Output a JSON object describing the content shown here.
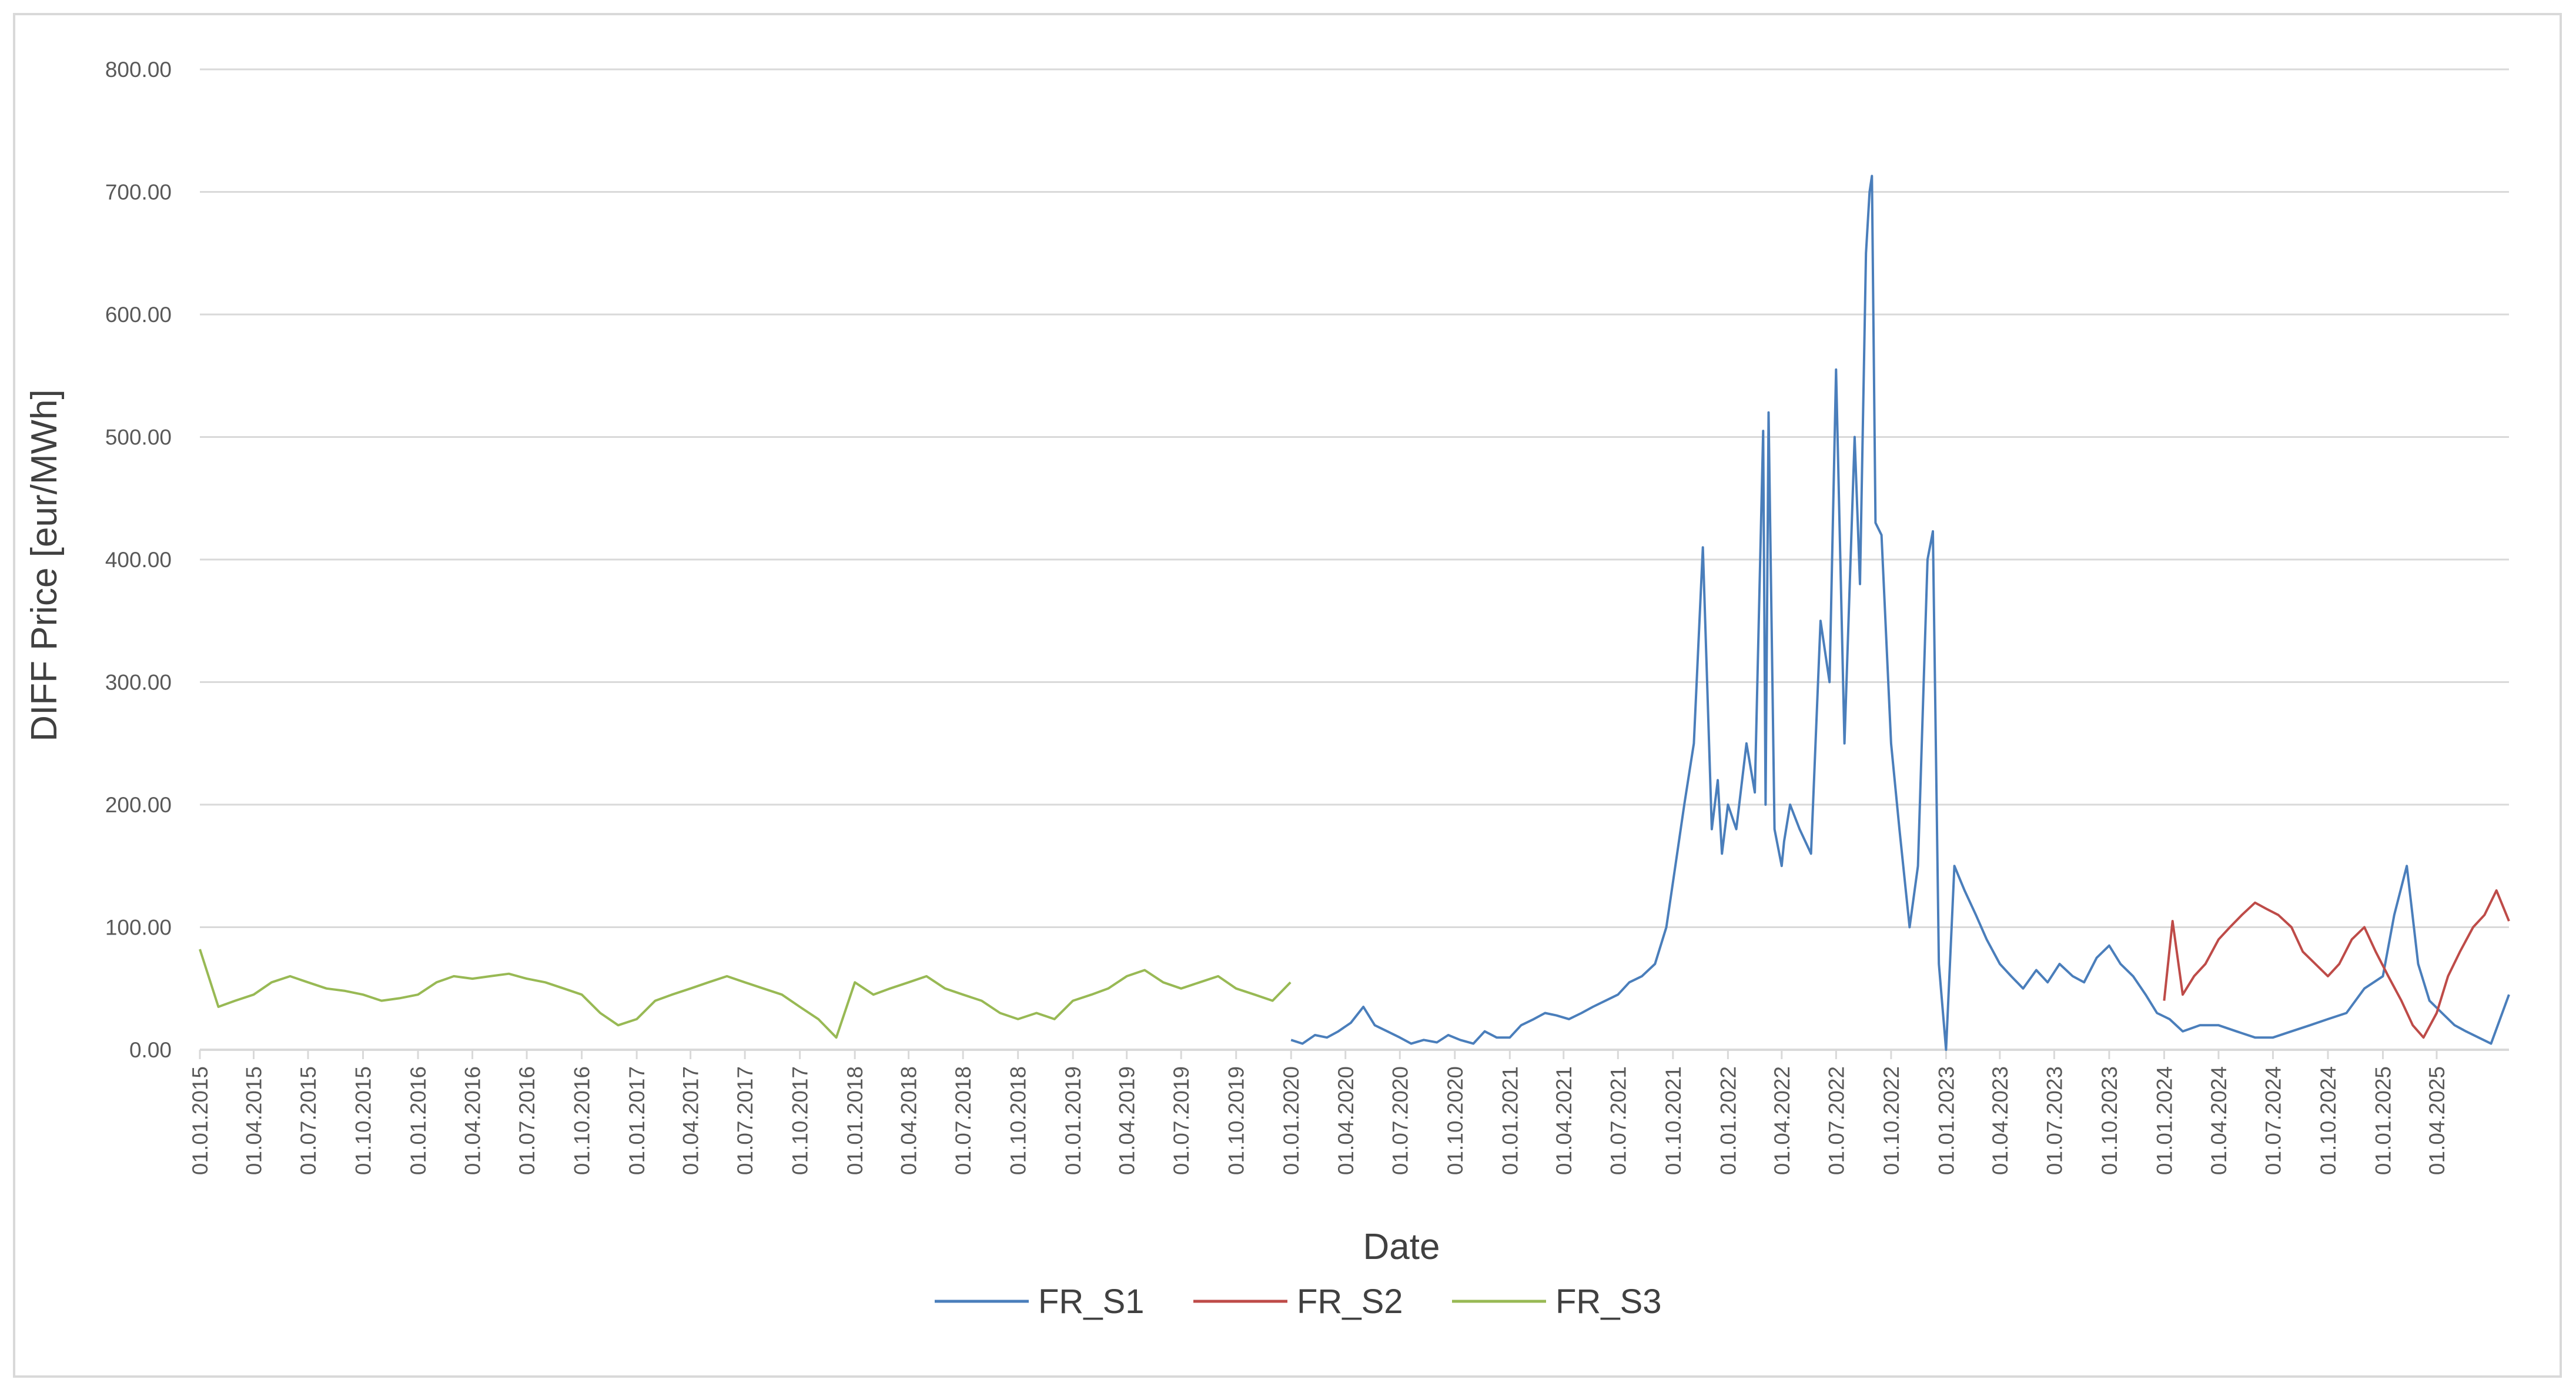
{
  "chart_data": {
    "type": "line",
    "title": "",
    "xlabel": "Date",
    "ylabel": "DIFF Price [eur/MWh]",
    "ylim": [
      0,
      800
    ],
    "yticks": [
      "0.00",
      "100.00",
      "200.00",
      "300.00",
      "400.00",
      "500.00",
      "600.00",
      "700.00",
      "800.00"
    ],
    "xlim": [
      "2015-01-01",
      "2025-07-31"
    ],
    "xticks": [
      "01.01.2015",
      "01.04.2015",
      "01.07.2015",
      "01.10.2015",
      "01.01.2016",
      "01.04.2016",
      "01.07.2016",
      "01.10.2016",
      "01.01.2017",
      "01.04.2017",
      "01.07.2017",
      "01.10.2017",
      "01.01.2018",
      "01.04.2018",
      "01.07.2018",
      "01.10.2018",
      "01.01.2019",
      "01.04.2019",
      "01.07.2019",
      "01.10.2019",
      "01.01.2020",
      "01.04.2020",
      "01.07.2020",
      "01.10.2020",
      "01.01.2021",
      "01.04.2021",
      "01.07.2021",
      "01.10.2021",
      "01.01.2022",
      "01.04.2022",
      "01.07.2022",
      "01.10.2022",
      "01.01.2023",
      "01.04.2023",
      "01.07.2023",
      "01.10.2023",
      "01.01.2024",
      "01.04.2024",
      "01.07.2024",
      "01.10.2024",
      "01.01.2025",
      "01.04.2025"
    ],
    "grid": true,
    "legend": "bottom",
    "series": [
      {
        "name": "FR_S1",
        "color": "#4a7ebb",
        "x": [
          "2020-01-01",
          "2020-01-20",
          "2020-02-10",
          "2020-03-01",
          "2020-03-20",
          "2020-04-10",
          "2020-05-01",
          "2020-05-20",
          "2020-06-10",
          "2020-07-01",
          "2020-07-20",
          "2020-08-10",
          "2020-09-01",
          "2020-09-20",
          "2020-10-10",
          "2020-11-01",
          "2020-11-20",
          "2020-12-10",
          "2021-01-01",
          "2021-01-20",
          "2021-02-10",
          "2021-03-01",
          "2021-03-20",
          "2021-04-10",
          "2021-05-01",
          "2021-05-20",
          "2021-06-10",
          "2021-07-01",
          "2021-07-20",
          "2021-08-10",
          "2021-09-01",
          "2021-09-20",
          "2021-10-05",
          "2021-10-20",
          "2021-11-05",
          "2021-11-20",
          "2021-12-05",
          "2021-12-15",
          "2021-12-22",
          "2022-01-01",
          "2022-01-15",
          "2022-02-01",
          "2022-02-15",
          "2022-03-01",
          "2022-03-05",
          "2022-03-10",
          "2022-03-20",
          "2022-04-01",
          "2022-04-05",
          "2022-04-15",
          "2022-05-01",
          "2022-05-20",
          "2022-06-05",
          "2022-06-20",
          "2022-07-01",
          "2022-07-15",
          "2022-08-01",
          "2022-08-10",
          "2022-08-20",
          "2022-08-26",
          "2022-08-30",
          "2022-09-05",
          "2022-09-15",
          "2022-10-01",
          "2022-10-15",
          "2022-11-01",
          "2022-11-15",
          "2022-12-01",
          "2022-12-10",
          "2022-12-20",
          "2023-01-01",
          "2023-01-15",
          "2023-02-01",
          "2023-02-20",
          "2023-03-10",
          "2023-04-01",
          "2023-04-20",
          "2023-05-10",
          "2023-06-01",
          "2023-06-20",
          "2023-07-10",
          "2023-08-01",
          "2023-08-20",
          "2023-09-10",
          "2023-10-01",
          "2023-10-20",
          "2023-11-10",
          "2023-12-01",
          "2023-12-20",
          "2024-01-10",
          "2024-02-01",
          "2024-03-01",
          "2024-04-01",
          "2024-05-01",
          "2024-06-01",
          "2024-07-01",
          "2024-08-01",
          "2024-09-01",
          "2024-10-01",
          "2024-11-01",
          "2024-12-01",
          "2025-01-01",
          "2025-01-20",
          "2025-02-10",
          "2025-03-01",
          "2025-03-20",
          "2025-04-10",
          "2025-05-01",
          "2025-05-20",
          "2025-06-10",
          "2025-07-01",
          "2025-07-31"
        ],
        "values": [
          8,
          5,
          12,
          10,
          15,
          22,
          35,
          20,
          15,
          10,
          5,
          8,
          6,
          12,
          8,
          5,
          15,
          10,
          10,
          20,
          25,
          30,
          28,
          25,
          30,
          35,
          40,
          45,
          55,
          60,
          70,
          100,
          150,
          200,
          250,
          410,
          180,
          220,
          160,
          200,
          180,
          250,
          210,
          505,
          200,
          520,
          180,
          150,
          170,
          200,
          180,
          160,
          350,
          300,
          555,
          250,
          500,
          380,
          650,
          700,
          713,
          430,
          420,
          250,
          180,
          100,
          150,
          400,
          423,
          70,
          0,
          150,
          130,
          110,
          90,
          70,
          60,
          50,
          65,
          55,
          70,
          60,
          55,
          75,
          85,
          70,
          60,
          45,
          30,
          25,
          15,
          20,
          20,
          15,
          10,
          10,
          15,
          20,
          25,
          30,
          50,
          60,
          110,
          150,
          70,
          40,
          30,
          20,
          15,
          10,
          5,
          45
        ]
      },
      {
        "name": "FR_S2",
        "color": "#be4b48",
        "x": [
          "2024-01-01",
          "2024-01-15",
          "2024-02-01",
          "2024-02-20",
          "2024-03-10",
          "2024-04-01",
          "2024-04-20",
          "2024-05-10",
          "2024-06-01",
          "2024-06-20",
          "2024-07-10",
          "2024-08-01",
          "2024-08-20",
          "2024-09-10",
          "2024-10-01",
          "2024-10-20",
          "2024-11-10",
          "2024-12-01",
          "2024-12-20",
          "2025-01-10",
          "2025-02-01",
          "2025-02-20",
          "2025-03-10",
          "2025-04-01",
          "2025-04-20",
          "2025-05-10",
          "2025-06-01",
          "2025-06-20",
          "2025-07-10",
          "2025-07-31"
        ],
        "values": [
          40,
          105,
          45,
          60,
          70,
          90,
          100,
          110,
          120,
          115,
          110,
          100,
          80,
          70,
          60,
          70,
          90,
          100,
          80,
          60,
          40,
          20,
          10,
          30,
          60,
          80,
          100,
          110,
          130,
          105
        ]
      },
      {
        "name": "FR_S3",
        "color": "#98b954",
        "x": [
          "2015-01-01",
          "2015-02-01",
          "2015-03-01",
          "2015-04-01",
          "2015-05-01",
          "2015-06-01",
          "2015-07-01",
          "2015-08-01",
          "2015-09-01",
          "2015-10-01",
          "2015-11-01",
          "2015-12-01",
          "2016-01-01",
          "2016-02-01",
          "2016-03-01",
          "2016-04-01",
          "2016-05-01",
          "2016-06-01",
          "2016-07-01",
          "2016-08-01",
          "2016-09-01",
          "2016-10-01",
          "2016-11-01",
          "2016-12-01",
          "2017-01-01",
          "2017-02-01",
          "2017-03-01",
          "2017-04-01",
          "2017-05-01",
          "2017-06-01",
          "2017-07-01",
          "2017-08-01",
          "2017-09-01",
          "2017-10-01",
          "2017-11-01",
          "2017-12-01",
          "2018-01-01",
          "2018-02-01",
          "2018-03-01",
          "2018-04-01",
          "2018-05-01",
          "2018-06-01",
          "2018-07-01",
          "2018-08-01",
          "2018-09-01",
          "2018-10-01",
          "2018-11-01",
          "2018-12-01",
          "2019-01-01",
          "2019-02-01",
          "2019-03-01",
          "2019-04-01",
          "2019-05-01",
          "2019-06-01",
          "2019-07-01",
          "2019-08-01",
          "2019-09-01",
          "2019-10-01",
          "2019-11-01",
          "2019-12-01",
          "2019-12-31"
        ],
        "values": [
          82,
          35,
          40,
          45,
          55,
          60,
          55,
          50,
          48,
          45,
          40,
          42,
          45,
          55,
          60,
          58,
          60,
          62,
          58,
          55,
          50,
          45,
          30,
          20,
          25,
          40,
          45,
          50,
          55,
          60,
          55,
          50,
          45,
          35,
          25,
          10,
          55,
          45,
          50,
          55,
          60,
          50,
          45,
          40,
          30,
          25,
          30,
          25,
          40,
          45,
          50,
          60,
          65,
          55,
          50,
          55,
          60,
          50,
          45,
          40,
          55
        ]
      }
    ]
  }
}
